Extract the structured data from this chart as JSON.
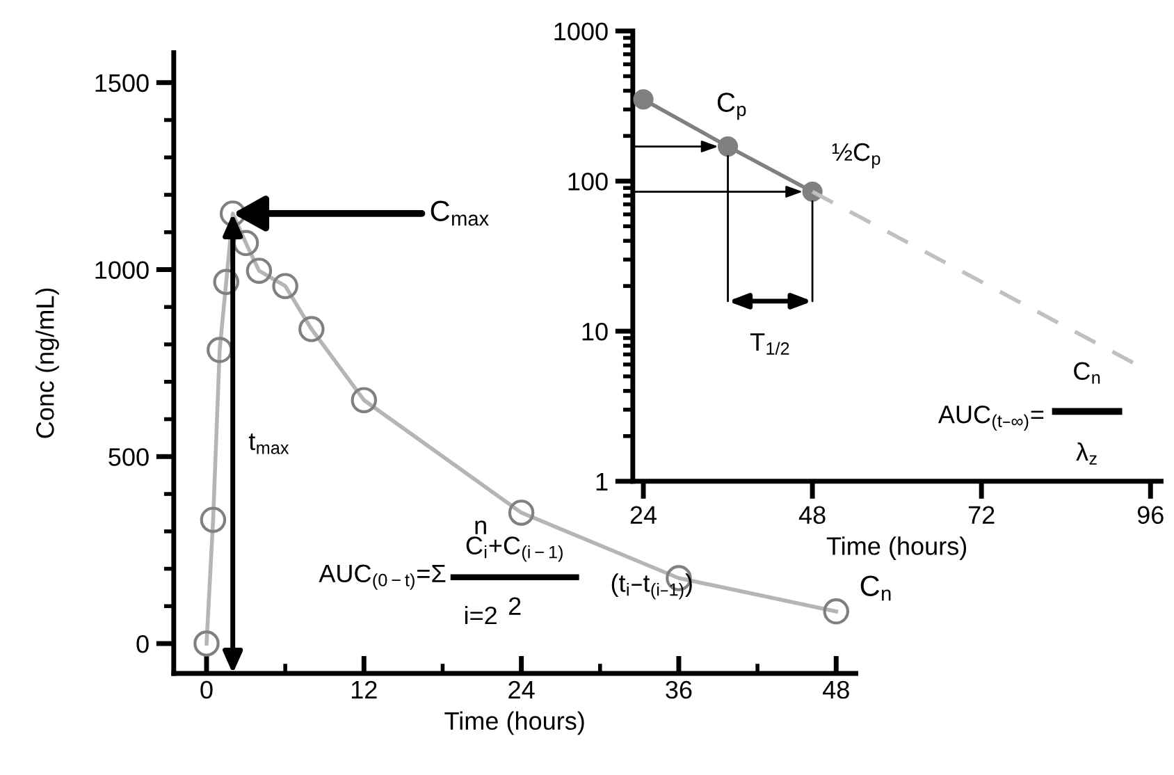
{
  "chart_data": [
    {
      "type": "line",
      "xlabel": "Time (hours)",
      "ylabel": "Conc (ng/mL)",
      "x": [
        0,
        0.5,
        1,
        1.5,
        2,
        3,
        4,
        6,
        8,
        12,
        24,
        36,
        48
      ],
      "series": [
        {
          "color": "#b5b5b5",
          "values": [
            0,
            331,
            785,
            967,
            1150,
            1071,
            997,
            956,
            841,
            651,
            350,
            175,
            86
          ]
        }
      ],
      "marker": "circle",
      "line_style": "solid",
      "xlim": [
        -2.5,
        49.5
      ],
      "xticks": [
        0,
        {
          "value": 6,
          "label": null
        },
        12,
        {
          "value": 18,
          "label": null
        },
        24,
        {
          "value": 30,
          "label": null
        },
        36,
        {
          "value": 42,
          "label": null
        },
        48
      ],
      "ylim": [
        -80,
        1580
      ],
      "yticks": [
        0,
        {
          "value": 100,
          "label": null
        },
        {
          "value": 200,
          "label": null
        },
        {
          "value": 300,
          "label": null
        },
        {
          "value": 400,
          "label": null
        },
        500,
        {
          "value": 600,
          "label": null
        },
        {
          "value": 700,
          "label": null
        },
        {
          "value": 800,
          "label": null
        },
        {
          "value": 900,
          "label": null
        },
        1000,
        {
          "value": 1100,
          "label": null
        },
        {
          "value": 1200,
          "label": null
        },
        {
          "value": 1300,
          "label": null
        },
        {
          "value": 1400,
          "label": null
        },
        1500
      ],
      "annotations": [
        {
          "text": "C$_{max}$",
          "x": 2,
          "y": 1150
        },
        "t$_{max}$",
        {
          "text": "C$_{n}$",
          "x": 48,
          "y": 86
        },
        "n",
        "AUC$_{(0−t)}$=Σ",
        "i=2",
        "C$_{i}$+C$_{(i−1)}$",
        "2",
        "(t$_{i}$–t$_{(i–1)}$)"
      ]
    },
    {
      "type": "line",
      "xlabel": "Time (hours)",
      "log": "y",
      "series": [
        {
          "color": "#808080",
          "x": [
            24,
            36,
            48
          ],
          "values": [
            350,
            170,
            85
          ],
          "marker": "circle",
          "line_style": "solid"
        },
        {
          "color": "#c0c0c0",
          "x": [
            48,
            94
          ],
          "values": [
            85,
            6
          ],
          "marker": "none",
          "line_style": "dashed"
        }
      ],
      "xlim": [
        22.5,
        97.5
      ],
      "xticks": [
        24,
        48,
        72,
        96
      ],
      "ylim": [
        1,
        1000
      ],
      "yticks": [
        1,
        {
          "value": 2,
          "label": null
        },
        {
          "value": 3,
          "label": null
        },
        {
          "value": 4,
          "label": null
        },
        {
          "value": 5,
          "label": null
        },
        {
          "value": 6,
          "label": null
        },
        {
          "value": 7,
          "label": null
        },
        {
          "value": 8,
          "label": null
        },
        {
          "value": 9,
          "label": null
        },
        10,
        {
          "value": 20,
          "label": null
        },
        {
          "value": 30,
          "label": null
        },
        {
          "value": 40,
          "label": null
        },
        {
          "value": 50,
          "label": null
        },
        {
          "value": 60,
          "label": null
        },
        {
          "value": 70,
          "label": null
        },
        {
          "value": 80,
          "label": null
        },
        {
          "value": 90,
          "label": null
        },
        100,
        {
          "value": 200,
          "label": null
        },
        {
          "value": 300,
          "label": null
        },
        {
          "value": 400,
          "label": null
        },
        {
          "value": 500,
          "label": null
        },
        {
          "value": 600,
          "label": null
        },
        {
          "value": 700,
          "label": null
        },
        {
          "value": 800,
          "label": null
        },
        {
          "value": 900,
          "label": null
        },
        1000
      ],
      "annotations": [
        {
          "text": "C$_{p}$",
          "x": 36,
          "y": 170
        },
        {
          "text": "½C$_{p}$",
          "x": 48,
          "y": 85
        },
        "T$_{1/2}$",
        "AUC$_{(t–∞)}$=",
        "C$_{n}$",
        "λ$_{z}$"
      ]
    }
  ]
}
